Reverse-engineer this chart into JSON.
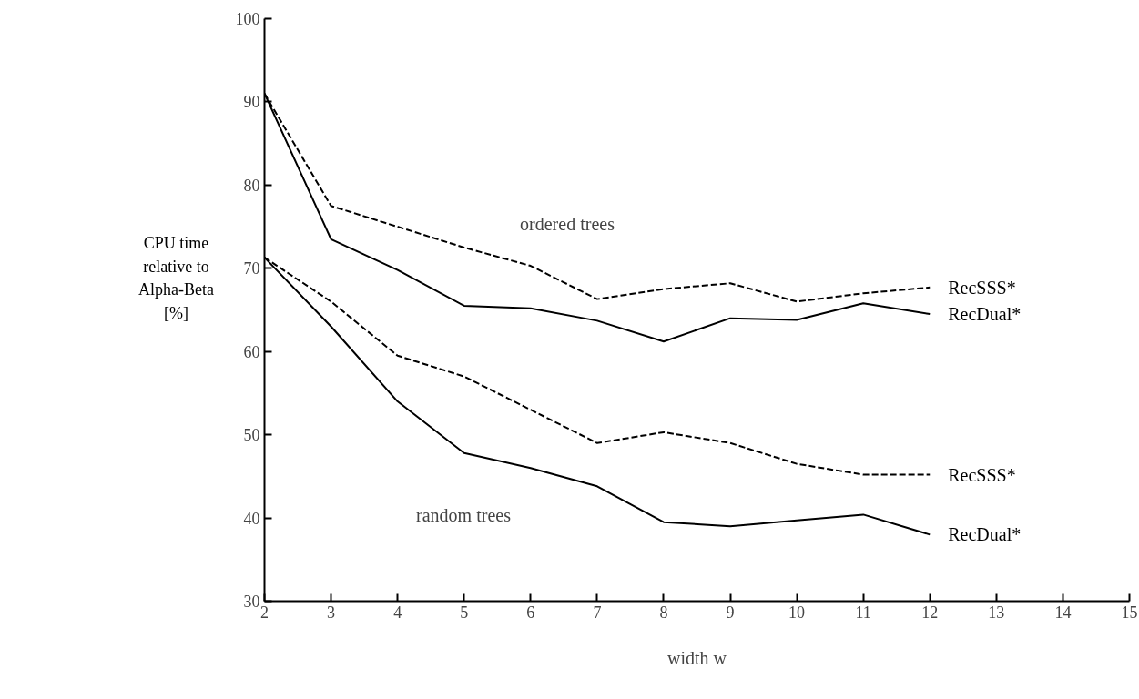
{
  "chart_data": {
    "type": "line",
    "xlabel": "width w",
    "ylabel": "CPU time\nrelative to\nAlpha-Beta\n[%]",
    "x": [
      2,
      3,
      4,
      5,
      6,
      7,
      8,
      9,
      10,
      11,
      12
    ],
    "series": [
      {
        "name": "RecSSS*",
        "color": "#000000",
        "line_style": "dashed",
        "values": [
          91,
          77.5,
          75,
          72.5,
          70.3,
          66.3,
          67.5,
          68.2,
          66,
          67,
          67.7
        ]
      },
      {
        "name": "RecDual*",
        "color": "#000000",
        "line_style": "solid",
        "values": [
          91,
          73.5,
          69.8,
          65.5,
          65.2,
          63.7,
          61.2,
          64,
          63.8,
          65.8,
          64.5
        ]
      },
      {
        "name": "RecSSS*",
        "color": "#000000",
        "line_style": "dashed",
        "values": [
          71.3,
          66,
          59.5,
          57,
          53,
          49,
          50.3,
          49,
          46.5,
          45.2,
          45.2
        ]
      },
      {
        "name": "RecDual*",
        "color": "#000000",
        "line_style": "solid",
        "values": [
          71.3,
          63,
          54,
          47.8,
          46,
          43.8,
          39.5,
          39,
          39.7,
          40.4,
          38
        ]
      }
    ],
    "annotations": [
      "ordered trees",
      "random trees"
    ],
    "xlim": [
      2,
      15
    ],
    "ylim": [
      30,
      100
    ],
    "xticks": [
      2,
      3,
      4,
      5,
      6,
      7,
      8,
      9,
      10,
      11,
      12,
      13,
      14,
      15
    ],
    "yticks": [
      30,
      40,
      50,
      60,
      70,
      80,
      90,
      100
    ],
    "grid": false,
    "marker": "none"
  }
}
